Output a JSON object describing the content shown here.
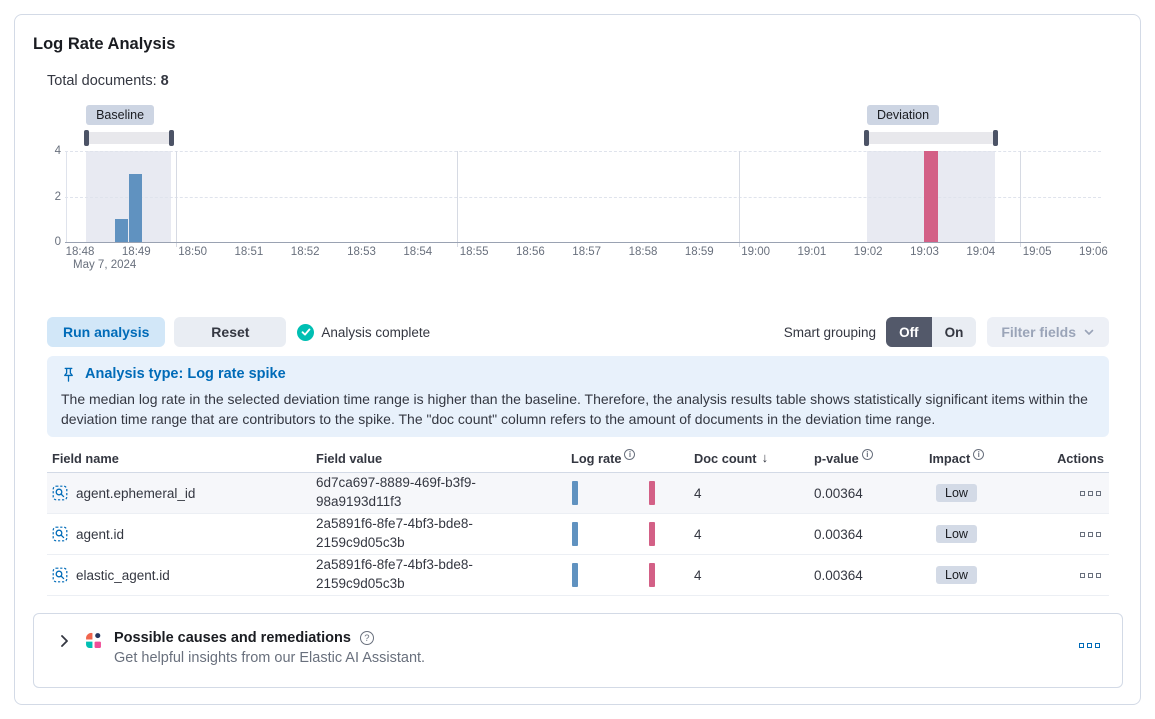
{
  "panel": {
    "title": "Log Rate Analysis"
  },
  "summary": {
    "label": "Total documents:",
    "value": "8"
  },
  "controls": {
    "run_button": "Run analysis",
    "reset_button": "Reset",
    "status": "Analysis complete",
    "smart_grouping_label": "Smart grouping",
    "off_label": "Off",
    "on_label": "On",
    "filter_fields_label": "Filter fields"
  },
  "callout": {
    "title": "Analysis type: Log rate spike",
    "body": "The median log rate in the selected deviation time range is higher than the baseline. Therefore, the analysis results table shows statistically significant items within the deviation time range that are contributors to the spike. The \"doc count\" column refers to the amount of documents in the deviation time range."
  },
  "table": {
    "columns": [
      "Field name",
      "Field value",
      "Log rate",
      "Doc count",
      "p-value",
      "Impact",
      "Actions"
    ],
    "rows": [
      {
        "field_name": "agent.ephemeral_id",
        "field_value": "6d7ca697-8889-469f-b3f9-98a9193d11f3",
        "doc_count": "4",
        "p_value": "0.00364",
        "impact": "Low"
      },
      {
        "field_name": "agent.id",
        "field_value": "2a5891f6-8fe7-4bf3-bde8-2159c9d05c3b",
        "doc_count": "4",
        "p_value": "0.00364",
        "impact": "Low"
      },
      {
        "field_name": "elastic_agent.id",
        "field_value": "2a5891f6-8fe7-4bf3-bde8-2159c9d05c3b",
        "doc_count": "4",
        "p_value": "0.00364",
        "impact": "Low"
      }
    ]
  },
  "assistant": {
    "title": "Possible causes and remediations",
    "subtitle": "Get helpful insights from our Elastic AI Assistant."
  },
  "icons": {
    "info": "i",
    "help": "?",
    "sort_desc": "↓"
  },
  "colors": {
    "primary": "#006BB8",
    "success": "#00BFB3",
    "baseline_bar": "#6092C0",
    "deviation_bar": "#D36086",
    "region": "#E8EAF2",
    "brush_track": "#E8E8EC",
    "brush_handle": "#4C5366"
  },
  "chart_data": {
    "type": "bar",
    "x_date_label": "May 7, 2024",
    "x_tick_labels": [
      "18:48",
      "18:49",
      "18:50",
      "18:51",
      "18:52",
      "18:53",
      "18:54",
      "18:55",
      "18:56",
      "18:57",
      "18:58",
      "18:59",
      "19:00",
      "19:01",
      "19:02",
      "19:03",
      "19:04",
      "19:05",
      "19:06"
    ],
    "y_ticks": [
      4,
      2,
      0
    ],
    "ylim": [
      0,
      4
    ],
    "grid_minutes": [
      2,
      7,
      12,
      17
    ],
    "bar_width_minutes": 0.24,
    "series": [
      {
        "name": "baseline",
        "color": "#6092C0",
        "bars": [
          {
            "time": "18:48:55",
            "minutes": 0.92,
            "value": 1
          },
          {
            "time": "18:49:10",
            "minutes": 1.17,
            "value": 3
          }
        ]
      },
      {
        "name": "deviation",
        "color": "#D36086",
        "bars": [
          {
            "time": "19:03:20",
            "minutes": 15.3,
            "value": 4
          }
        ]
      }
    ],
    "regions": [
      {
        "label": "Baseline",
        "from_minutes": 0.41,
        "to_minutes": 1.92
      },
      {
        "label": "Deviation",
        "from_minutes": 14.28,
        "to_minutes": 16.56
      }
    ]
  }
}
